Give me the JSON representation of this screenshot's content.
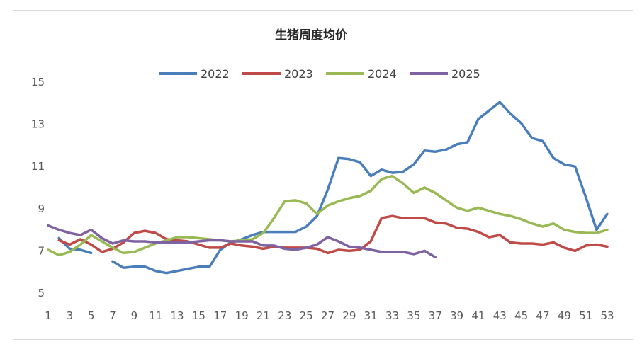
{
  "chart_data": {
    "type": "line",
    "title": "生猪周度均价",
    "xlabel": "",
    "ylabel": "",
    "ylim": [
      5,
      15
    ],
    "yticks": [
      5,
      7,
      9,
      11,
      13,
      15
    ],
    "xlim": [
      1,
      53
    ],
    "xticks": [
      1,
      3,
      5,
      7,
      9,
      11,
      13,
      15,
      17,
      19,
      21,
      23,
      25,
      27,
      29,
      31,
      33,
      35,
      37,
      39,
      41,
      43,
      45,
      47,
      49,
      51,
      53
    ],
    "grid": false,
    "legend_position": "top",
    "series": [
      {
        "name": "2022",
        "color": "#4a7ebb",
        "values": [
          null,
          7.6,
          7.1,
          7.05,
          6.9,
          null,
          6.5,
          6.2,
          6.25,
          6.25,
          6.05,
          5.95,
          6.05,
          6.15,
          6.25,
          6.25,
          7.05,
          7.4,
          7.55,
          7.75,
          7.9,
          7.9,
          7.9,
          7.9,
          8.15,
          8.65,
          9.9,
          11.4,
          11.35,
          11.2,
          10.55,
          10.85,
          10.7,
          10.75,
          11.1,
          11.75,
          11.7,
          11.8,
          12.05,
          12.15,
          13.25,
          13.65,
          14.05,
          13.5,
          13.05,
          12.35,
          12.2,
          11.4,
          11.1,
          11.0,
          9.55,
          8.0,
          8.75
        ]
      },
      {
        "name": "2023",
        "color": "#be4b48",
        "values": [
          null,
          7.5,
          7.3,
          7.55,
          7.3,
          6.95,
          7.1,
          7.4,
          7.85,
          7.95,
          7.85,
          7.55,
          7.5,
          7.45,
          7.3,
          7.15,
          7.15,
          7.35,
          7.25,
          7.2,
          7.1,
          7.2,
          7.15,
          7.15,
          7.15,
          7.1,
          6.9,
          7.05,
          7.0,
          7.05,
          7.45,
          8.55,
          8.65,
          8.55,
          8.55,
          8.55,
          8.35,
          8.3,
          8.1,
          8.05,
          7.9,
          7.65,
          7.75,
          7.4,
          7.35,
          7.35,
          7.3,
          7.4,
          7.15,
          7.0,
          7.25,
          7.3,
          7.2
        ]
      },
      {
        "name": "2024",
        "color": "#98b954",
        "values": [
          7.05,
          6.8,
          6.95,
          7.3,
          7.75,
          7.45,
          7.15,
          6.9,
          6.95,
          7.15,
          7.35,
          7.5,
          7.65,
          7.65,
          7.6,
          7.55,
          7.5,
          7.45,
          7.5,
          7.55,
          7.85,
          8.55,
          9.35,
          9.4,
          9.25,
          8.75,
          9.15,
          9.35,
          9.5,
          9.6,
          9.85,
          10.4,
          10.55,
          10.2,
          9.75,
          10.0,
          9.75,
          9.4,
          9.05,
          8.9,
          9.05,
          8.9,
          8.75,
          8.65,
          8.5,
          8.3,
          8.15,
          8.3,
          8.0,
          7.9,
          7.85,
          7.85,
          8.0
        ]
      },
      {
        "name": "2025",
        "color": "#7e62a1",
        "values": [
          8.2,
          8.0,
          7.85,
          7.75,
          8.0,
          7.6,
          7.35,
          7.5,
          7.45,
          7.45,
          7.4,
          7.4,
          7.4,
          7.4,
          7.45,
          7.5,
          7.5,
          7.45,
          7.45,
          7.45,
          7.25,
          7.25,
          7.1,
          7.05,
          7.15,
          7.3,
          7.65,
          7.45,
          7.2,
          7.15,
          7.05,
          6.95,
          6.95,
          6.95,
          6.85,
          7.0,
          6.7
        ]
      }
    ]
  }
}
